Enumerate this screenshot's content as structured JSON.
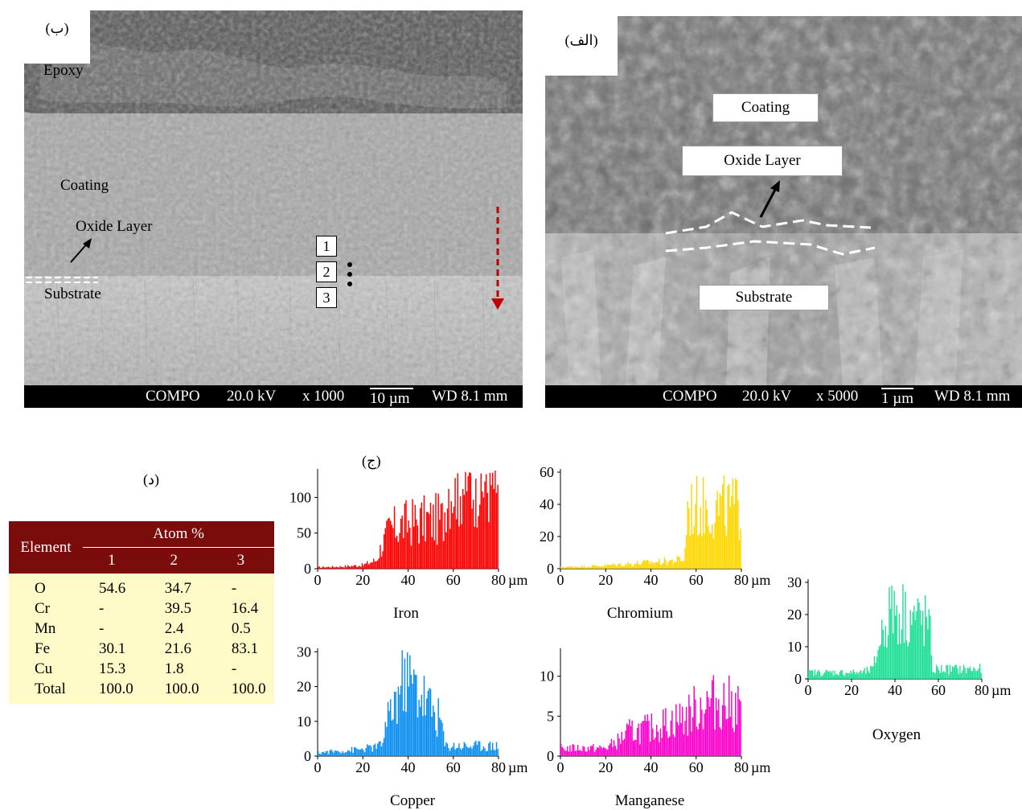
{
  "panel_b": {
    "letter": "(ب)",
    "labels": {
      "epoxy": "Epoxy",
      "coating": "Coating",
      "oxide": "Oxide Layer",
      "substrate": "Substrate"
    },
    "points": [
      "1",
      "2",
      "3"
    ],
    "info": {
      "mode": "COMPO",
      "kv": "20.0 kV",
      "mag": "x 1000",
      "scale": "10 µm",
      "wd": "WD 8.1 mm"
    }
  },
  "panel_alef": {
    "letter": "(الف)",
    "labels": {
      "coating": "Coating",
      "oxide": "Oxide Layer",
      "substrate": "Substrate"
    },
    "info": {
      "mode": "COMPO",
      "kv": "20.0 kV",
      "mag": "x 5000",
      "scale": "1 µm",
      "wd": "WD 8.1 mm"
    }
  },
  "panel_d": {
    "letter": "(د)",
    "table": {
      "col_element": "Element",
      "col_group": "Atom %",
      "points": [
        "1",
        "2",
        "3"
      ],
      "rows": [
        {
          "element": "O",
          "values": [
            "54.6",
            "34.7",
            "-"
          ]
        },
        {
          "element": "Cr",
          "values": [
            "-",
            "39.5",
            "16.4"
          ]
        },
        {
          "element": "Mn",
          "values": [
            "-",
            "2.4",
            "0.5"
          ]
        },
        {
          "element": "Fe",
          "values": [
            "30.1",
            "21.6",
            "83.1"
          ]
        },
        {
          "element": "Cu",
          "values": [
            "15.3",
            "1.8",
            "-"
          ]
        },
        {
          "element": "Total",
          "values": [
            "100.0",
            "100.0",
            "100.0"
          ]
        }
      ]
    }
  },
  "panel_j": {
    "letter": "(ج)"
  },
  "chart_data": [
    {
      "type": "bar",
      "title": "Iron",
      "xlabel": "µm",
      "color": "#ff0000",
      "xlim": [
        0,
        80
      ],
      "xticks": [
        "0",
        "20",
        "40",
        "60",
        "80"
      ],
      "ylim": [
        0,
        140
      ],
      "yticks": [
        "0",
        "50",
        "100"
      ],
      "profile": [
        [
          0,
          2
        ],
        [
          10,
          3
        ],
        [
          20,
          5
        ],
        [
          26,
          12
        ],
        [
          28,
          30
        ],
        [
          32,
          55
        ],
        [
          40,
          65
        ],
        [
          48,
          68
        ],
        [
          56,
          70
        ],
        [
          57,
          120
        ],
        [
          80,
          125
        ]
      ]
    },
    {
      "type": "bar",
      "title": "Chromium",
      "xlabel": "µm",
      "color": "#ffd700",
      "xlim": [
        0,
        80
      ],
      "xticks": [
        "0",
        "20",
        "40",
        "60",
        "80"
      ],
      "ylim": [
        0,
        62
      ],
      "yticks": [
        "0",
        "20",
        "40",
        "60"
      ],
      "profile": [
        [
          0,
          1
        ],
        [
          20,
          2
        ],
        [
          30,
          3
        ],
        [
          40,
          4
        ],
        [
          50,
          5
        ],
        [
          55,
          6
        ],
        [
          56,
          38
        ],
        [
          80,
          38
        ]
      ]
    },
    {
      "type": "bar",
      "title": "Oxygen",
      "xlabel": "µm",
      "color": "#1edf95",
      "xlim": [
        0,
        80
      ],
      "xticks": [
        "0",
        "20",
        "40",
        "60",
        "80"
      ],
      "ylim": [
        0,
        31
      ],
      "yticks": [
        "0",
        "10",
        "20",
        "30"
      ],
      "profile": [
        [
          0,
          2
        ],
        [
          10,
          2
        ],
        [
          25,
          2
        ],
        [
          30,
          3
        ],
        [
          33,
          12
        ],
        [
          38,
          22
        ],
        [
          45,
          20
        ],
        [
          52,
          18
        ],
        [
          56,
          17
        ],
        [
          57,
          3
        ],
        [
          65,
          3
        ],
        [
          80,
          3
        ]
      ]
    },
    {
      "type": "bar",
      "title": "Copper",
      "xlabel": "µm",
      "color": "#0a8ef0",
      "xlim": [
        0,
        80
      ],
      "xticks": [
        "0",
        "20",
        "40",
        "60",
        "80"
      ],
      "ylim": [
        0,
        31
      ],
      "yticks": [
        "0",
        "10",
        "20",
        "30"
      ],
      "profile": [
        [
          0,
          1
        ],
        [
          20,
          2
        ],
        [
          28,
          3
        ],
        [
          32,
          12
        ],
        [
          38,
          22
        ],
        [
          44,
          20
        ],
        [
          50,
          14
        ],
        [
          55,
          10
        ],
        [
          56,
          3
        ],
        [
          80,
          3
        ]
      ]
    },
    {
      "type": "bar",
      "title": "Manganese",
      "xlabel": "µm",
      "color": "#ff00cc",
      "xlim": [
        0,
        80
      ],
      "xticks": [
        "0",
        "20",
        "40",
        "60",
        "80"
      ],
      "ylim": [
        0,
        13.5
      ],
      "yticks": [
        "0",
        "5",
        "10"
      ],
      "profile": [
        [
          0,
          1
        ],
        [
          20,
          1
        ],
        [
          26,
          2
        ],
        [
          30,
          3
        ],
        [
          40,
          3.5
        ],
        [
          50,
          4.5
        ],
        [
          56,
          5
        ],
        [
          60,
          6
        ],
        [
          70,
          7
        ],
        [
          80,
          6
        ]
      ]
    }
  ]
}
